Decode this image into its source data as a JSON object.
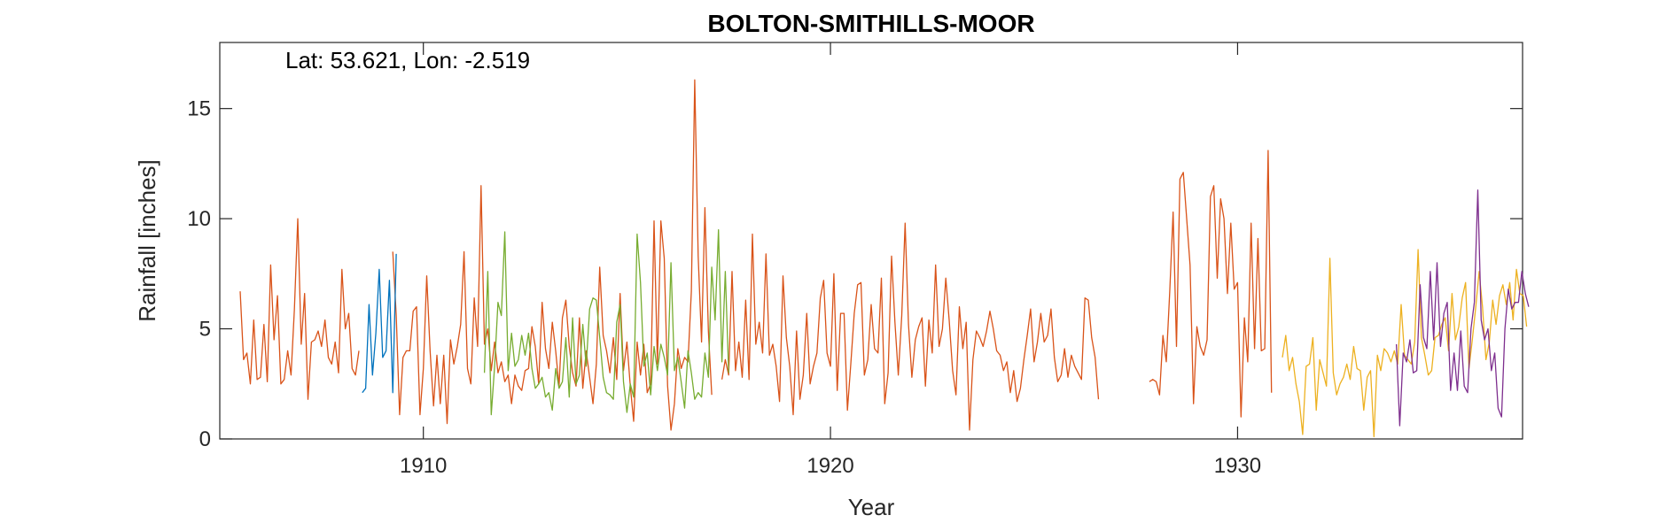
{
  "chart_data": {
    "type": "line",
    "title": "BOLTON-SMITHILLS-MOOR",
    "xlabel": "Year",
    "ylabel": "Rainfall [inches]",
    "annotation": "Lat: 53.621, Lon: -2.519",
    "xlim": [
      1905.0,
      1937.0
    ],
    "ylim": [
      0,
      18
    ],
    "xticks": [
      1910,
      1920,
      1930
    ],
    "yticks": [
      0,
      5,
      10,
      15
    ],
    "grid": false,
    "legend": "none",
    "series": [
      {
        "color": "#D95319",
        "start": 1905.5,
        "values": [
          6.7,
          3.6,
          3.9,
          2.5,
          5.4,
          2.7,
          2.8,
          5.2,
          2.6,
          7.9,
          4.5,
          6.5,
          2.5,
          2.7,
          4.0,
          2.9,
          5.9,
          10.0,
          4.3,
          6.6,
          1.8,
          4.4,
          4.5,
          4.9,
          4.2,
          5.4,
          3.7,
          3.4,
          4.4,
          3.0,
          7.7,
          5.0,
          5.7,
          3.2,
          2.9,
          4.0,
          null,
          null,
          null,
          null,
          null,
          null,
          null,
          null,
          null,
          8.5,
          5.6,
          1.1,
          3.7,
          4.0,
          4.0,
          5.8,
          6.0,
          1.1,
          3.2,
          7.4,
          4.0,
          1.5,
          3.8,
          1.6,
          3.8,
          0.7,
          4.5,
          3.4,
          4.2,
          5.2,
          8.5,
          3.2,
          2.5,
          6.4,
          4.2,
          11.5,
          4.3,
          5.0,
          3.1,
          4.4,
          3.0,
          3.5,
          2.6,
          2.9,
          1.6,
          2.9,
          2.4,
          2.2,
          3.1,
          3.2,
          5.1,
          4.2,
          2.5,
          6.2,
          4.1,
          3.2,
          5.3,
          4.0,
          2.4,
          5.5,
          6.3,
          4.2,
          3.0,
          2.4,
          5.5,
          2.3,
          4.0,
          2.8,
          1.6,
          3.4,
          7.8,
          4.7,
          4.0,
          3.0,
          4.6,
          2.7,
          6.6,
          3.1,
          4.4,
          2.4,
          0.8,
          4.4,
          2.9,
          4.3,
          2.1,
          2.5,
          9.9,
          3.4,
          9.9,
          8.2,
          2.4,
          0.4,
          1.6,
          4.1,
          3.2,
          3.7,
          3.5,
          6.7,
          16.3,
          8.3,
          4.4,
          10.5,
          4.9,
          2.0,
          null,
          null,
          2.7,
          3.6,
          2.9,
          7.6,
          3.1,
          4.4,
          2.8,
          6.3,
          2.7,
          9.3,
          4.3,
          5.3,
          3.9,
          8.4,
          3.8,
          4.3,
          3.3,
          1.7,
          7.4,
          4.6,
          3.3,
          1.1,
          4.9,
          1.8,
          2.9,
          5.7,
          2.5,
          3.3,
          3.9,
          6.4,
          7.2,
          3.9,
          3.3,
          7.5,
          2.2,
          5.7,
          5.7,
          1.3,
          3.4,
          5.7,
          7.0,
          7.1,
          2.9,
          3.6,
          6.1,
          4.1,
          3.9,
          7.3,
          1.6,
          3.0,
          8.3,
          5.3,
          2.9,
          5.6,
          9.8,
          5.2,
          2.8,
          4.5,
          5.1,
          5.5,
          2.4,
          5.4,
          3.9,
          7.9,
          4.2,
          5.0,
          7.3,
          5.4,
          3.1,
          2.0,
          6.0,
          4.1,
          5.3,
          0.4,
          3.6,
          4.9,
          4.6,
          4.2,
          4.9,
          5.8,
          5.0,
          4.0,
          3.8,
          3.1,
          3.5,
          2.1,
          3.1,
          1.7,
          2.3,
          3.6,
          4.7,
          5.9,
          3.5,
          4.4,
          5.7,
          4.4,
          4.7,
          5.9,
          3.7,
          2.6,
          2.9,
          4.1,
          2.8,
          3.8,
          3.3,
          3.0,
          2.7,
          6.4,
          6.3,
          4.6,
          3.7,
          1.8,
          null,
          null,
          null,
          null,
          null,
          null,
          null,
          null,
          null,
          null,
          null,
          null,
          null,
          null,
          2.6,
          2.7,
          2.6,
          2.0,
          4.7,
          3.5,
          6.7,
          10.3,
          4.2,
          11.8,
          12.1,
          10.0,
          7.9,
          1.6,
          5.1,
          4.2,
          3.8,
          4.5,
          11.0,
          11.5,
          7.3,
          10.9,
          10.0,
          6.6,
          9.8,
          6.8,
          7.1,
          1.0,
          5.5,
          3.5,
          9.8,
          4.1,
          9.1,
          4.0,
          4.1,
          13.1,
          2.1
        ]
      },
      {
        "color": "#0072BD",
        "start": 1908.5,
        "values": [
          2.1,
          2.3,
          6.1,
          2.9,
          4.8,
          7.7,
          3.7,
          4.0,
          7.2,
          2.1,
          8.4
        ]
      },
      {
        "color": "#77AC30",
        "start": 1911.5,
        "values": [
          3.0,
          7.6,
          1.1,
          3.3,
          6.2,
          5.6,
          9.4,
          3.1,
          4.8,
          3.3,
          3.6,
          4.7,
          3.8,
          4.8,
          3.2,
          2.3,
          2.5,
          2.8,
          1.9,
          2.1,
          1.3,
          3.2,
          2.3,
          2.6,
          4.6,
          1.9,
          5.5,
          2.5,
          2.9,
          5.2,
          3.3,
          5.9,
          6.4,
          6.3,
          4.6,
          2.8,
          2.1,
          2.0,
          1.8,
          5.3,
          6.1,
          2.6,
          1.2,
          2.5,
          1.9,
          9.3,
          7.1,
          3.3,
          3.9,
          2.0,
          4.2,
          3.1,
          4.3,
          3.7,
          2.9,
          8.0,
          3.1,
          3.7,
          2.6,
          1.4,
          4.0,
          3.0,
          1.8,
          2.1,
          1.9,
          3.9,
          2.8,
          7.8,
          5.4,
          9.5,
          3.5,
          7.6,
          3.0
        ]
      },
      {
        "color": "#EDB120",
        "start": 1931.1,
        "values": [
          3.7,
          4.7,
          3.1,
          3.7,
          2.5,
          1.7,
          0.2,
          3.3,
          3.4,
          4.6,
          1.3,
          3.6,
          3.0,
          2.4,
          8.2,
          3.0,
          2.0,
          2.5,
          2.8,
          3.4,
          2.7,
          4.2,
          3.2,
          3.1,
          1.3,
          2.8,
          3.1,
          0.1,
          3.8,
          3.1,
          4.1,
          3.9,
          3.5,
          4.0,
          3.4,
          6.1,
          3.8,
          3.6,
          3.4,
          4.4,
          8.6,
          4.6,
          3.8,
          2.9,
          3.1,
          4.6,
          4.7,
          5.2,
          5.5,
          4.0,
          6.6,
          4.5,
          5.1,
          6.4,
          7.1,
          3.2,
          4.5,
          6.0,
          7.6,
          6.0,
          3.6,
          4.4,
          6.3,
          5.2,
          6.5,
          7.0,
          6.1,
          7.1,
          5.4,
          7.7,
          6.6,
          6.5,
          5.1
        ]
      },
      {
        "color": "#7E2F8E",
        "start": 1933.9,
        "values": [
          4.3,
          0.6,
          3.9,
          3.5,
          4.5,
          3.0,
          3.1,
          7.0,
          4.6,
          4.1,
          7.6,
          4.5,
          8.0,
          4.2,
          5.7,
          6.2,
          2.2,
          3.9,
          2.2,
          4.9,
          2.4,
          2.1,
          5.0,
          6.2,
          11.3,
          5.4,
          4.5,
          5.0,
          3.1,
          3.9,
          1.4,
          1.0,
          5.0,
          6.8,
          5.9,
          6.2,
          6.2,
          7.6,
          6.6,
          6.0
        ]
      }
    ]
  }
}
